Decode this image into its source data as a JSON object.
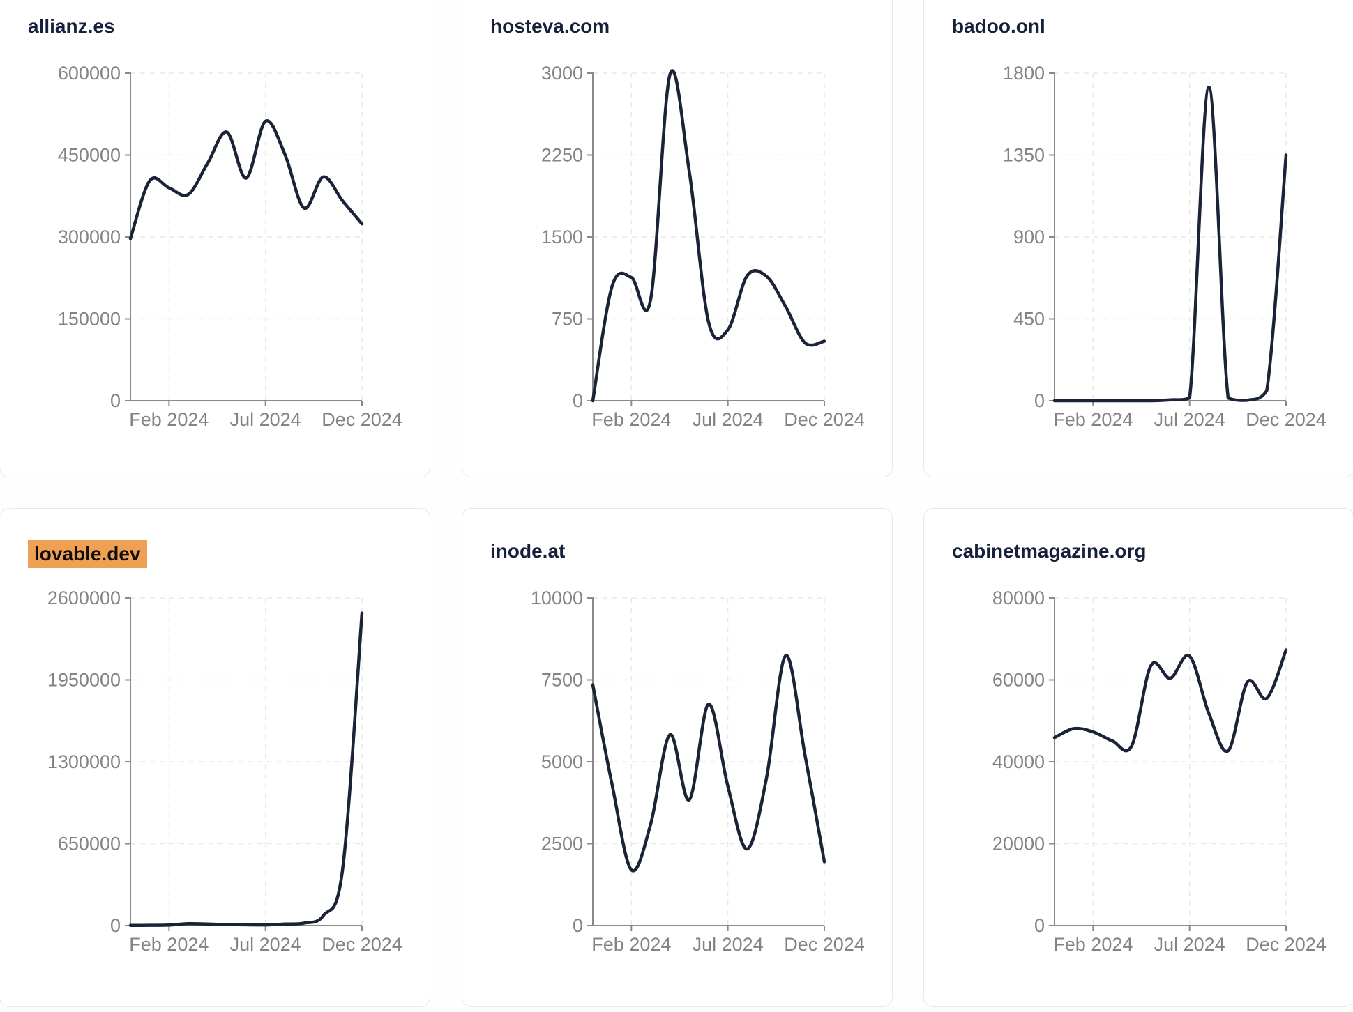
{
  "style": {
    "line_color": "#1b2338",
    "title_color": "#16203b",
    "label_color": "#838383",
    "axis_color": "#8a8a8a",
    "grid_color": "#e9e9ea",
    "card_border_color": "#e5e7f0",
    "card_background": "#ffffff",
    "page_background": "#fefefe",
    "highlight_color": "#f0a053"
  },
  "chart_data": [
    {
      "type": "line",
      "title": "allianz.es",
      "highlighted": false,
      "x": [
        "Dec 2023",
        "Jan 2024",
        "Feb 2024",
        "Mar 2024",
        "Apr 2024",
        "May 2024",
        "Jun 2024",
        "Jul 2024",
        "Aug 2024",
        "Sep 2024",
        "Oct 2024",
        "Nov 2024",
        "Dec 2024"
      ],
      "values": [
        297000,
        403000,
        390000,
        378000,
        435000,
        492000,
        408000,
        512000,
        452000,
        353000,
        410000,
        366000,
        324000
      ],
      "ylim": [
        0,
        600000
      ],
      "y_ticks": [
        0,
        150000,
        300000,
        450000,
        600000
      ],
      "x_tick_labels": [
        "Feb 2024",
        "Jul 2024",
        "Dec 2024"
      ],
      "x_tick_idx": [
        2,
        7,
        12
      ],
      "grid": true,
      "legend": "none"
    },
    {
      "type": "line",
      "title": "hosteva.com",
      "highlighted": false,
      "x": [
        "Dec 2023",
        "Jan 2024",
        "Feb 2024",
        "Mar 2024",
        "Apr 2024",
        "May 2024",
        "Jun 2024",
        "Jul 2024",
        "Aug 2024",
        "Sep 2024",
        "Oct 2024",
        "Nov 2024",
        "Dec 2024"
      ],
      "values": [
        0,
        1050,
        1130,
        930,
        2990,
        2100,
        720,
        650,
        1145,
        1140,
        860,
        530,
        545
      ],
      "ylim": [
        0,
        3000
      ],
      "y_ticks": [
        0,
        750,
        1500,
        2250,
        3000
      ],
      "x_tick_labels": [
        "Feb 2024",
        "Jul 2024",
        "Dec 2024"
      ],
      "x_tick_idx": [
        2,
        7,
        12
      ],
      "grid": true,
      "legend": "none"
    },
    {
      "type": "line",
      "title": "badoo.onl",
      "highlighted": false,
      "x": [
        "Dec 2023",
        "Jan 2024",
        "Feb 2024",
        "Mar 2024",
        "Apr 2024",
        "May 2024",
        "Jun 2024",
        "Jul 2024",
        "Aug 2024",
        "Sep 2024",
        "Oct 2024",
        "Nov 2024",
        "Dec 2024"
      ],
      "values": [
        0,
        0,
        0,
        0,
        0,
        0,
        5,
        15,
        1723,
        15,
        3,
        55,
        1350
      ],
      "ylim": [
        0,
        1800
      ],
      "y_ticks": [
        0,
        450,
        900,
        1350,
        1800
      ],
      "x_tick_labels": [
        "Feb 2024",
        "Jul 2024",
        "Dec 2024"
      ],
      "x_tick_idx": [
        2,
        7,
        12
      ],
      "grid": true,
      "legend": "none"
    },
    {
      "type": "line",
      "title": "lovable.dev",
      "highlighted": true,
      "x": [
        "Dec 2023",
        "Jan 2024",
        "Feb 2024",
        "Mar 2024",
        "Apr 2024",
        "May 2024",
        "Jun 2024",
        "Jul 2024",
        "Aug 2024",
        "Sep 2024",
        "Oct 2024",
        "Nov 2024",
        "Dec 2024"
      ],
      "values": [
        1000,
        2000,
        4000,
        15000,
        12000,
        8000,
        6000,
        5000,
        12000,
        20000,
        80000,
        450000,
        2480000
      ],
      "ylim": [
        0,
        2600000
      ],
      "y_ticks": [
        0,
        650000,
        1300000,
        1950000,
        2600000
      ],
      "x_tick_labels": [
        "Feb 2024",
        "Jul 2024",
        "Dec 2024"
      ],
      "x_tick_idx": [
        2,
        7,
        12
      ],
      "grid": true,
      "legend": "none"
    },
    {
      "type": "line",
      "title": "inode.at",
      "highlighted": false,
      "x": [
        "Dec 2023",
        "Jan 2024",
        "Feb 2024",
        "Mar 2024",
        "Apr 2024",
        "May 2024",
        "Jun 2024",
        "Jul 2024",
        "Aug 2024",
        "Sep 2024",
        "Oct 2024",
        "Nov 2024",
        "Dec 2024"
      ],
      "values": [
        7350,
        4300,
        1700,
        3100,
        5830,
        3840,
        6760,
        4250,
        2340,
        4500,
        8240,
        5200,
        1950
      ],
      "ylim": [
        0,
        10000
      ],
      "y_ticks": [
        0,
        2500,
        5000,
        7500,
        10000
      ],
      "x_tick_labels": [
        "Feb 2024",
        "Jul 2024",
        "Dec 2024"
      ],
      "x_tick_idx": [
        2,
        7,
        12
      ],
      "grid": true,
      "legend": "none"
    },
    {
      "type": "line",
      "title": "cabinetmagazine.org",
      "highlighted": false,
      "x": [
        "Dec 2023",
        "Jan 2024",
        "Feb 2024",
        "Mar 2024",
        "Apr 2024",
        "May 2024",
        "Jun 2024",
        "Jul 2024",
        "Aug 2024",
        "Sep 2024",
        "Oct 2024",
        "Nov 2024",
        "Dec 2024"
      ],
      "values": [
        45900,
        48100,
        47300,
        45100,
        43900,
        63500,
        60400,
        65800,
        51800,
        42700,
        59500,
        55500,
        67300
      ],
      "ylim": [
        0,
        80000
      ],
      "y_ticks": [
        0,
        20000,
        40000,
        60000,
        80000
      ],
      "x_tick_labels": [
        "Feb 2024",
        "Jul 2024",
        "Dec 2024"
      ],
      "x_tick_idx": [
        2,
        7,
        12
      ],
      "grid": true,
      "legend": "none"
    }
  ]
}
